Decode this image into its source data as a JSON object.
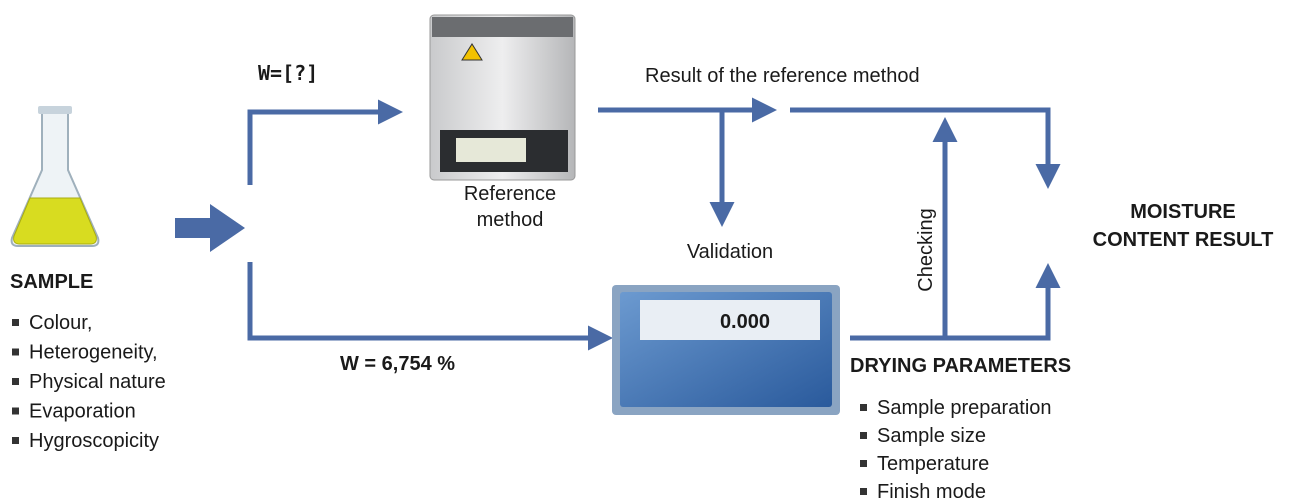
{
  "sample": {
    "title": "SAMPLE",
    "items": [
      "Colour,",
      "Heterogeneity,",
      "Physical nature",
      "Evaporation",
      "Hygroscopicity"
    ]
  },
  "unknown_label": "W=[?]",
  "reference": {
    "lines": [
      "Reference",
      "method"
    ]
  },
  "result_label": "Result of the reference method",
  "validation_label": "Validation",
  "checking_label": "Checking",
  "moisture": {
    "lines": [
      "MOISTURE",
      "CONTENT RESULT"
    ]
  },
  "measured_label": "W = 6,754 %",
  "display_value": "0.000",
  "drying": {
    "title": "DRYING PARAMETERS",
    "items": [
      "Sample preparation",
      "Sample size",
      "Temperature",
      "Finish mode"
    ]
  }
}
